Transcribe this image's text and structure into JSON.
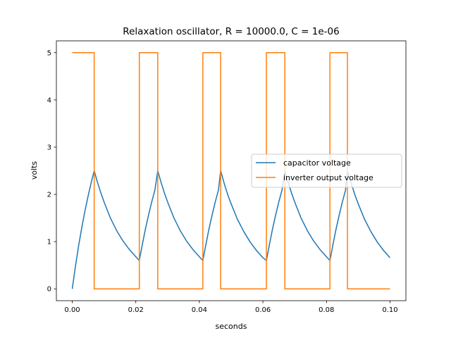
{
  "chart_data": {
    "type": "line",
    "title": "Relaxation oscillator, R = 10000.0, C = 1e-06",
    "xlabel": "seconds",
    "ylabel": "volts",
    "xlim": [
      -0.005,
      0.105
    ],
    "ylim": [
      -0.25,
      5.25
    ],
    "xticks": [
      0.0,
      0.02,
      0.04,
      0.06,
      0.08,
      0.1
    ],
    "xtick_labels": [
      "0.00",
      "0.02",
      "0.04",
      "0.06",
      "0.08",
      "0.10"
    ],
    "yticks": [
      0,
      1,
      2,
      3,
      4,
      5
    ],
    "ytick_labels": [
      "0",
      "1",
      "2",
      "3",
      "4",
      "5"
    ],
    "grid": false,
    "legend_position": "center-right",
    "series": [
      {
        "name": "capacitor voltage",
        "color": "#1f77b4",
        "x": [
          0.0,
          0.001,
          0.002,
          0.003,
          0.004,
          0.005,
          0.006,
          0.0069,
          0.008,
          0.009,
          0.01,
          0.012,
          0.014,
          0.016,
          0.018,
          0.02,
          0.0211,
          0.022,
          0.023,
          0.024,
          0.025,
          0.026,
          0.0269,
          0.028,
          0.029,
          0.03,
          0.032,
          0.034,
          0.036,
          0.038,
          0.04,
          0.0411,
          0.042,
          0.043,
          0.044,
          0.045,
          0.046,
          0.0467,
          0.048,
          0.049,
          0.05,
          0.052,
          0.054,
          0.056,
          0.058,
          0.06,
          0.0611,
          0.062,
          0.063,
          0.064,
          0.065,
          0.066,
          0.0669,
          0.068,
          0.069,
          0.07,
          0.072,
          0.074,
          0.076,
          0.078,
          0.08,
          0.0811,
          0.082,
          0.083,
          0.084,
          0.085,
          0.086,
          0.0866,
          0.088,
          0.089,
          0.09,
          0.092,
          0.094,
          0.096,
          0.098,
          0.1
        ],
        "y": [
          0.0,
          0.48,
          0.91,
          1.3,
          1.65,
          1.97,
          2.26,
          2.5,
          2.24,
          2.03,
          1.84,
          1.5,
          1.23,
          1.01,
          0.83,
          0.68,
          0.6,
          0.92,
          1.26,
          1.56,
          1.84,
          2.09,
          2.5,
          2.24,
          2.03,
          1.84,
          1.5,
          1.23,
          1.01,
          0.83,
          0.68,
          0.6,
          0.92,
          1.26,
          1.56,
          1.84,
          2.09,
          2.5,
          2.19,
          1.98,
          1.8,
          1.47,
          1.21,
          0.99,
          0.81,
          0.66,
          0.6,
          0.92,
          1.26,
          1.56,
          1.84,
          2.09,
          2.5,
          2.24,
          2.03,
          1.84,
          1.5,
          1.23,
          1.01,
          0.83,
          0.68,
          0.6,
          0.92,
          1.26,
          1.56,
          1.84,
          2.09,
          2.5,
          2.19,
          1.98,
          1.8,
          1.47,
          1.21,
          0.99,
          0.81,
          0.66
        ]
      },
      {
        "name": "inverter output voltage",
        "color": "#ff7f0e",
        "x": [
          0.0,
          0.0069,
          0.0069,
          0.0211,
          0.0211,
          0.0269,
          0.0269,
          0.0411,
          0.0411,
          0.0467,
          0.0467,
          0.0611,
          0.0611,
          0.0669,
          0.0669,
          0.0811,
          0.0811,
          0.0866,
          0.0866,
          0.1
        ],
        "y": [
          5,
          5,
          0,
          0,
          5,
          5,
          0,
          0,
          5,
          5,
          0,
          0,
          5,
          5,
          0,
          0,
          5,
          5,
          0,
          0
        ]
      }
    ]
  }
}
